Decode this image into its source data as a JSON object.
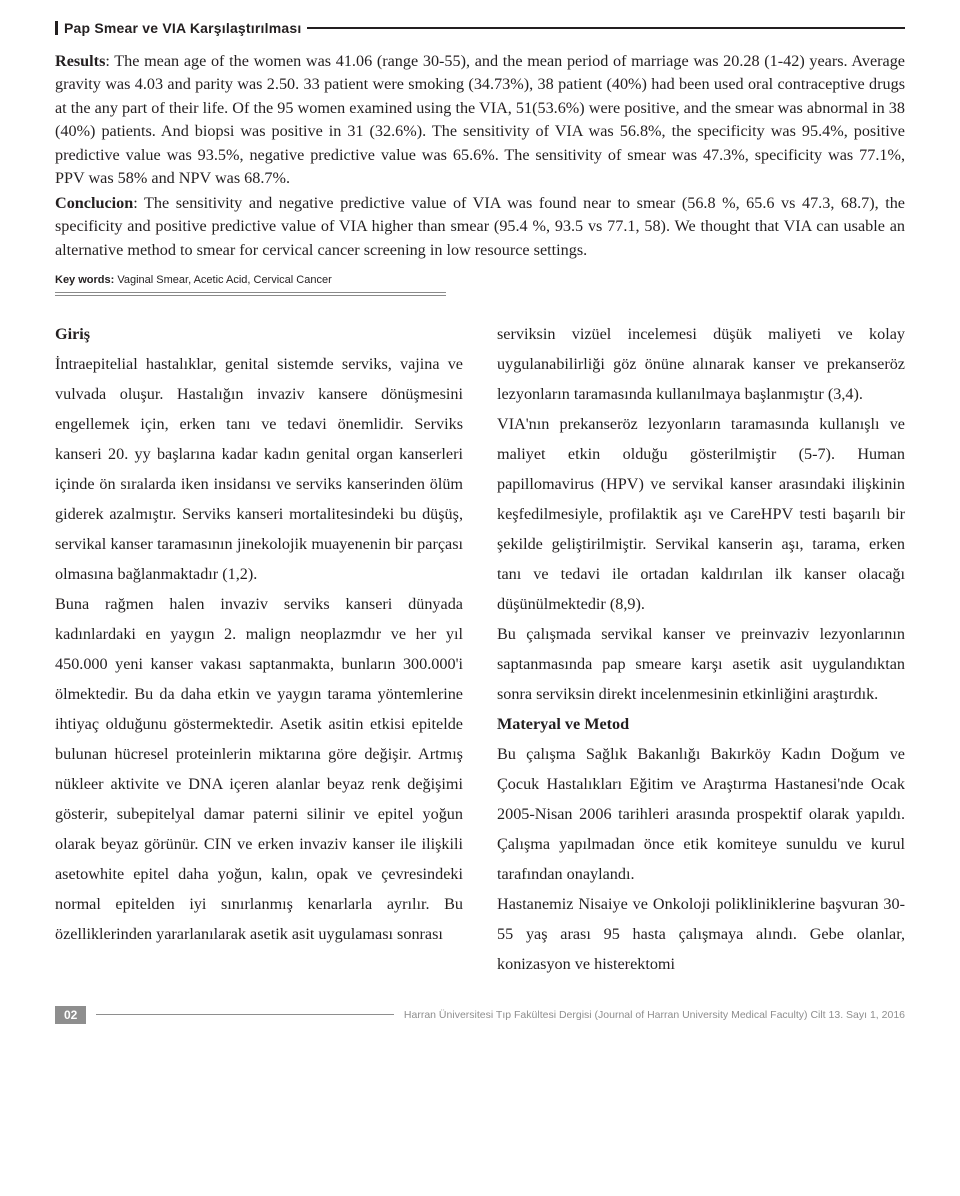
{
  "header": {
    "title": "Pap Smear ve VIA Karşılaştırılması"
  },
  "abstract": {
    "results_label": "Results",
    "results_text": ": The mean age of the women was 41.06 (range 30-55), and the mean period of marriage was 20.28 (1-42) years. Average gravity was 4.03 and parity was 2.50. 33 patient were smoking (34.73%), 38 patient (40%) had been used oral contraceptive drugs at the any part of their life. Of the 95 women examined using the VIA, 51(53.6%) were positive, and the smear was abnormal in 38 (40%) patients. And biopsi was positive in 31 (32.6%). The sensitivity of VIA was 56.8%, the specificity was 95.4%, positive predictive value was 93.5%, negative predictive value was 65.6%. The sensitivity of smear was 47.3%, specificity was 77.1%, PPV was 58% and NPV was 68.7%.",
    "conclusion_label": "Conclucion",
    "conclusion_text": ": The sensitivity and negative predictive value of VIA was found near to smear (56.8 %, 65.6 vs 47.3, 68.7), the specificity and positive predictive value of VIA higher than smear (95.4 %, 93.5 vs 77.1, 58). We thought that VIA can usable an alternative method to smear for cervical cancer screening in low resource settings."
  },
  "keywords": {
    "label": "Key words:",
    "text": " Vaginal Smear, Acetic Acid, Cervical Cancer"
  },
  "body": {
    "col1": {
      "section_title": "Giriş",
      "text": "İntraepitelial hastalıklar, genital sistemde serviks, vajina ve vulvada oluşur. Hastalığın invaziv kansere dönüşmesini engellemek için, erken tanı ve tedavi önemlidir. Serviks kanseri 20. yy başlarına kadar kadın genital organ kanserleri içinde ön sıralarda iken insidansı ve serviks kanserinden ölüm giderek azalmıştır. Serviks kanseri mortalitesindeki bu düşüş, servikal kanser taramasının jinekolojik muayenenin bir parçası olmasına bağlanmaktadır (1,2).\nBuna rağmen halen invaziv serviks kanseri dünyada kadınlardaki en yaygın 2. malign neoplazmdır ve her yıl 450.000 yeni kanser vakası saptanmakta, bunların 300.000'i ölmektedir. Bu da daha etkin ve yaygın tarama yöntemlerine ihtiyaç olduğunu göstermektedir. Asetik asitin etkisi epitelde bulunan hücresel proteinlerin miktarına göre değişir. Artmış nükleer aktivite ve DNA içeren alanlar beyaz renk değişimi gösterir, subepitelyal damar paterni silinir ve epitel yoğun olarak beyaz görünür. CIN ve erken invaziv kanser ile ilişkili asetowhite epitel daha yoğun, kalın, opak ve çevresindeki normal epitelden iyi sınırlanmış kenarlarla ayrılır. Bu özelliklerinden yararlanılarak asetik asit uygulaması sonrası"
    },
    "col2": {
      "p1": "serviksin vizüel incelemesi düşük maliyeti ve kolay uygulanabilirliği göz önüne alınarak kanser ve prekanseröz lezyonların taramasında kullanılmaya başlanmıştır (3,4).",
      "p2": "VIA'nın prekanseröz lezyonların taramasında kullanışlı ve maliyet etkin olduğu gösterilmiştir (5-7). Human papillomavirus (HPV) ve servikal kanser arasındaki ilişkinin keşfedilmesiyle, profilaktik aşı ve CareHPV testi başarılı bir şekilde geliştirilmiştir. Servikal kanserin aşı, tarama, erken tanı ve tedavi ile ortadan kaldırılan ilk kanser olacağı düşünülmektedir (8,9).",
      "p3": "Bu çalışmada servikal kanser ve preinvaziv lezyonlarının saptanmasında pap smeare karşı asetik asit uygulandıktan sonra serviksin direkt incelenmesinin etkinliğini araştırdık.",
      "section_title": "Materyal ve Metod",
      "p4": "Bu çalışma Sağlık Bakanlığı Bakırköy Kadın Doğum ve Çocuk Hastalıkları Eğitim ve Araştırma Hastanesi'nde Ocak 2005-Nisan 2006 tarihleri arasında prospektif olarak yapıldı. Çalışma yapılmadan önce etik komiteye sunuldu ve kurul tarafından onaylandı.",
      "p5": "Hastanemiz Nisaiye ve Onkoloji polikliniklerine başvuran 30-55 yaş arası 95 hasta çalışmaya alındı. Gebe olanlar, konizasyon ve histerektomi"
    }
  },
  "footer": {
    "page": "02",
    "journal": "Harran Üniversitesi Tıp Fakültesi Dergisi (Journal of Harran University Medical Faculty) Cilt 13. Sayı 1, 2016"
  }
}
